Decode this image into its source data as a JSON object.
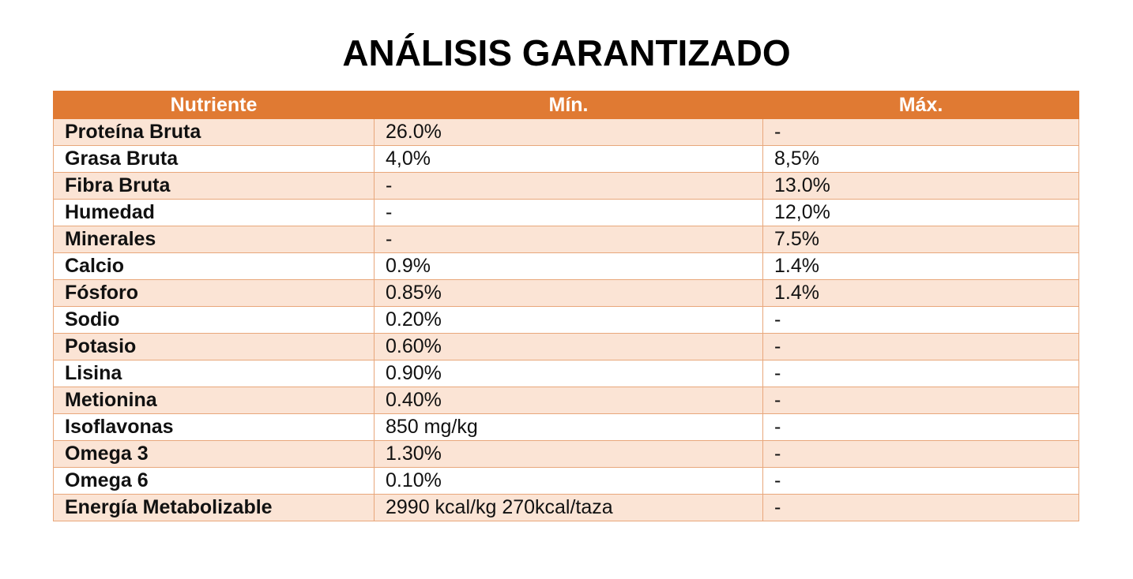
{
  "title": "ANÁLISIS GARANTIZADO",
  "table": {
    "headers": [
      "Nutriente",
      "Mín.",
      "Máx."
    ],
    "rows": [
      {
        "name": "Proteína Bruta",
        "min": "26.0%",
        "max": "-"
      },
      {
        "name": "Grasa Bruta",
        "min": "4,0%",
        "max": "8,5%"
      },
      {
        "name": "Fibra Bruta",
        "min": "-",
        "max": "13.0%"
      },
      {
        "name": "Humedad",
        "min": "-",
        "max": "12,0%"
      },
      {
        "name": "Minerales",
        "min": "-",
        "max": "7.5%"
      },
      {
        "name": "Calcio",
        "min": "0.9%",
        "max": "1.4%"
      },
      {
        "name": "Fósforo",
        "min": "0.85%",
        "max": "1.4%"
      },
      {
        "name": "Sodio",
        "min": "0.20%",
        "max": "-"
      },
      {
        "name": "Potasio",
        "min": "0.60%",
        "max": "-"
      },
      {
        "name": "Lisina",
        "min": "0.90%",
        "max": "-"
      },
      {
        "name": "Metionina",
        "min": "0.40%",
        "max": "-"
      },
      {
        "name": "Isoflavonas",
        "min": "850 mg/kg",
        "max": "-"
      },
      {
        "name": "Omega 3",
        "min": "1.30%",
        "max": "-"
      },
      {
        "name": "Omega 6",
        "min": "0.10%",
        "max": "-"
      },
      {
        "name": "Energía Metabolizable",
        "min": "2990 kcal/kg 270kcal/taza",
        "max": "-"
      }
    ]
  },
  "colors": {
    "header_background": "#e07a33",
    "header_text": "#ffffff",
    "row_shaded": "#fbe4d5",
    "row_plain": "#ffffff",
    "border": "#e8a77b"
  }
}
